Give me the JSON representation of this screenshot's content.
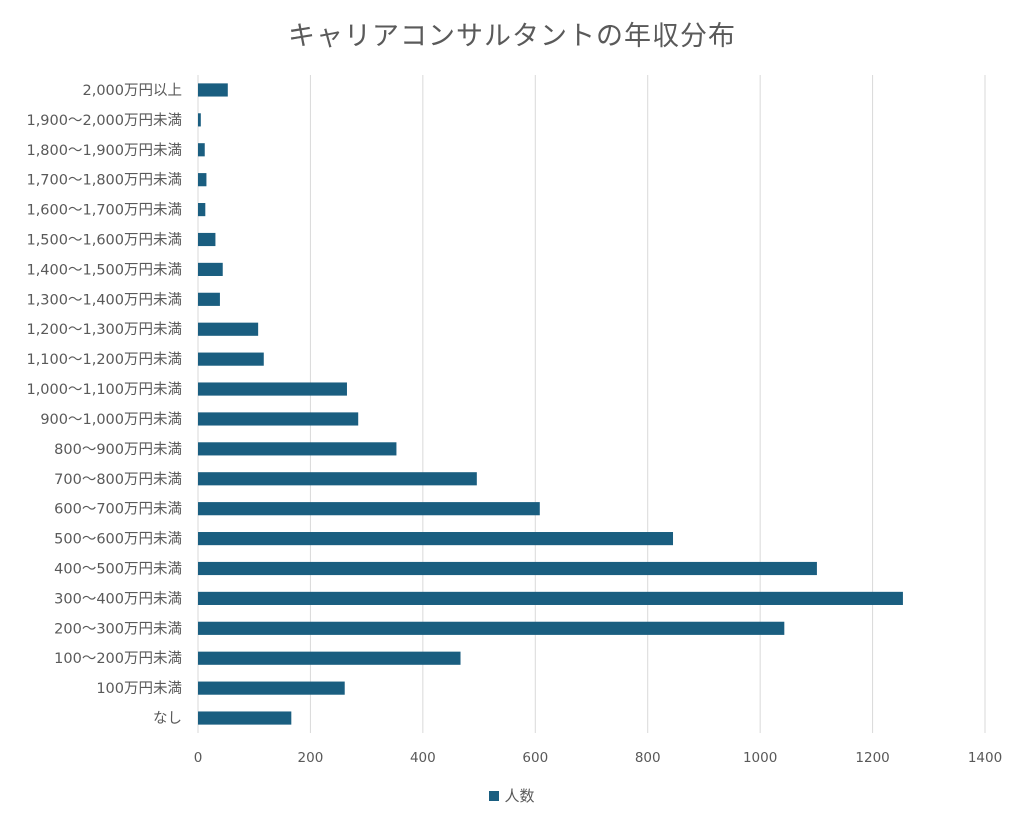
{
  "chart_data": {
    "type": "bar",
    "orientation": "horizontal",
    "title": "キャリアコンサルタントの年収分布",
    "categories": [
      "2,000万円以上",
      "1,900〜2,000万円未満",
      "1,800〜1,900万円未満",
      "1,700〜1,800万円未満",
      "1,600〜1,700万円未満",
      "1,500〜1,600万円未満",
      "1,400〜1,500万円未満",
      "1,300〜1,400万円未満",
      "1,200〜1,300万円未満",
      "1,100〜1,200万円未満",
      "1,000〜1,100万円未満",
      "900〜1,000万円未満",
      "800〜900万円未満",
      "700〜800万円未満",
      "600〜700万円未満",
      "500〜600万円未満",
      "400〜500万円未満",
      "300〜400万円未満",
      "200〜300万円未満",
      "100〜200万円未満",
      "100万円未満",
      "なし"
    ],
    "series": [
      {
        "name": "人数",
        "color": "#1a5e80",
        "values": [
          53,
          5,
          12,
          15,
          13,
          31,
          44,
          39,
          107,
          117,
          265,
          285,
          353,
          496,
          608,
          845,
          1101,
          1254,
          1043,
          467,
          261,
          166
        ]
      }
    ],
    "xlim": [
      0,
      1400
    ],
    "xticks": [
      "0",
      "200",
      "400",
      "600",
      "800",
      "1000",
      "1200",
      "1400"
    ],
    "grid": "vertical",
    "legend": "bottom"
  }
}
